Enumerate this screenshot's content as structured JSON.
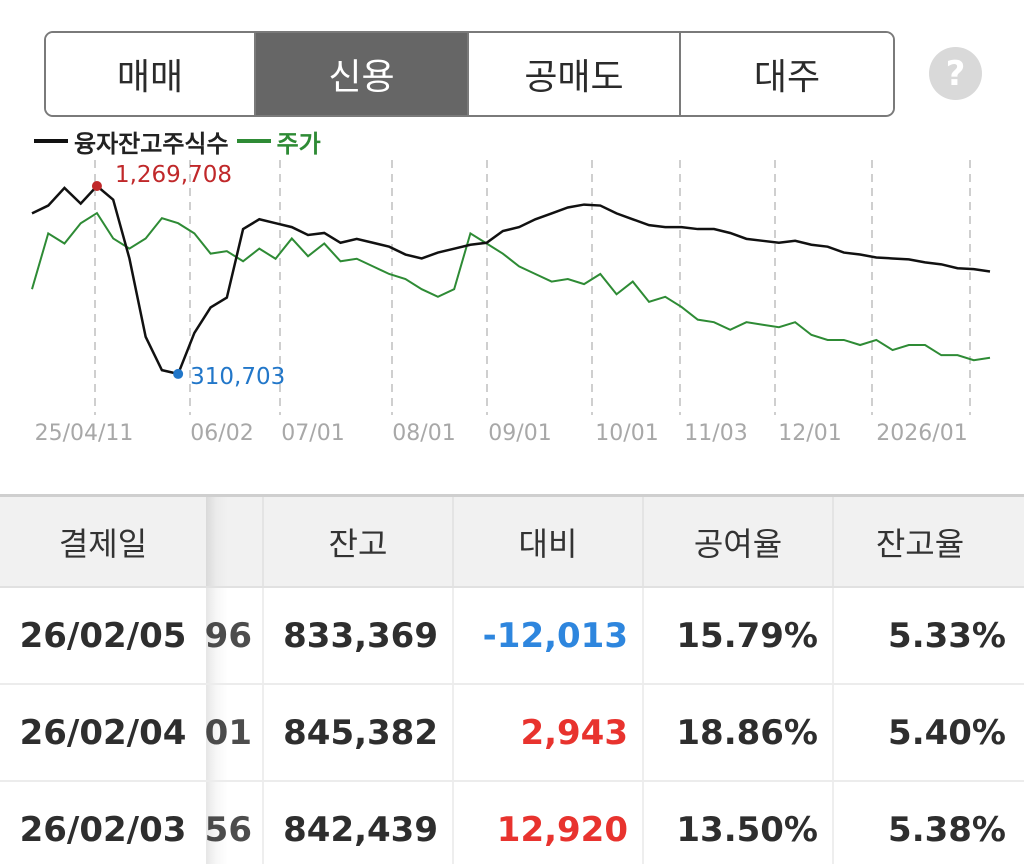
{
  "tabs": [
    "매매",
    "신용",
    "공매도",
    "대주"
  ],
  "active_tab": "신용",
  "help_label": "?",
  "legend": [
    {
      "label": "융자잔고주식수",
      "color": "#111111"
    },
    {
      "label": "주가",
      "color": "#2e8b35"
    }
  ],
  "chart_data": {
    "type": "line",
    "x_ticks": [
      "25/04/11",
      "06/02",
      "07/01",
      "08/01",
      "09/01",
      "10/01",
      "11/03",
      "12/01",
      "2026/01"
    ],
    "annotations": [
      {
        "label": "1,269,708",
        "color": "#c0282a",
        "series": "융자잔고주식수"
      },
      {
        "label": "310,703",
        "color": "#2277c9",
        "series": "융자잔고주식수"
      }
    ],
    "series": [
      {
        "name": "융자잔고주식수",
        "color": "#111111",
        "values": [
          1130000,
          1170000,
          1260000,
          1180000,
          1269708,
          1200000,
          900000,
          500000,
          330000,
          310703,
          520000,
          650000,
          700000,
          1050000,
          1100000,
          1080000,
          1060000,
          1020000,
          1030000,
          980000,
          1000000,
          980000,
          960000,
          920000,
          900000,
          930000,
          950000,
          970000,
          980000,
          1040000,
          1060000,
          1100000,
          1130000,
          1160000,
          1175000,
          1170000,
          1130000,
          1100000,
          1070000,
          1060000,
          1060000,
          1050000,
          1050000,
          1030000,
          1000000,
          990000,
          980000,
          990000,
          970000,
          960000,
          930000,
          920000,
          905000,
          900000,
          895000,
          880000,
          870000,
          850000,
          845382,
          833369
        ]
      },
      {
        "name": "주가",
        "color": "#2e8b35",
        "values": [
          500,
          720,
          680,
          760,
          800,
          700,
          660,
          700,
          780,
          760,
          720,
          640,
          650,
          610,
          660,
          620,
          700,
          630,
          680,
          610,
          620,
          590,
          560,
          540,
          500,
          470,
          500,
          720,
          680,
          640,
          590,
          560,
          530,
          540,
          520,
          560,
          480,
          530,
          450,
          470,
          430,
          380,
          370,
          340,
          370,
          360,
          350,
          370,
          320,
          300,
          300,
          280,
          300,
          260,
          280,
          280,
          240,
          240,
          220,
          230
        ]
      }
    ]
  },
  "table": {
    "headers": [
      "결제일",
      "",
      "잔고",
      "대비",
      "공여율",
      "잔고율"
    ],
    "rows": [
      {
        "date": "26/02/05",
        "partial": "96",
        "balance": "833,369",
        "change": "-12,013",
        "change_dir": "neg",
        "credit_ratio": "15.79%",
        "balance_ratio": "5.33%"
      },
      {
        "date": "26/02/04",
        "partial": "01",
        "balance": "845,382",
        "change": "2,943",
        "change_dir": "pos",
        "credit_ratio": "18.86%",
        "balance_ratio": "5.40%"
      },
      {
        "date": "26/02/03",
        "partial": "56",
        "balance": "842,439",
        "change": "12,920",
        "change_dir": "pos",
        "credit_ratio": "13.50%",
        "balance_ratio": "5.38%"
      }
    ]
  }
}
